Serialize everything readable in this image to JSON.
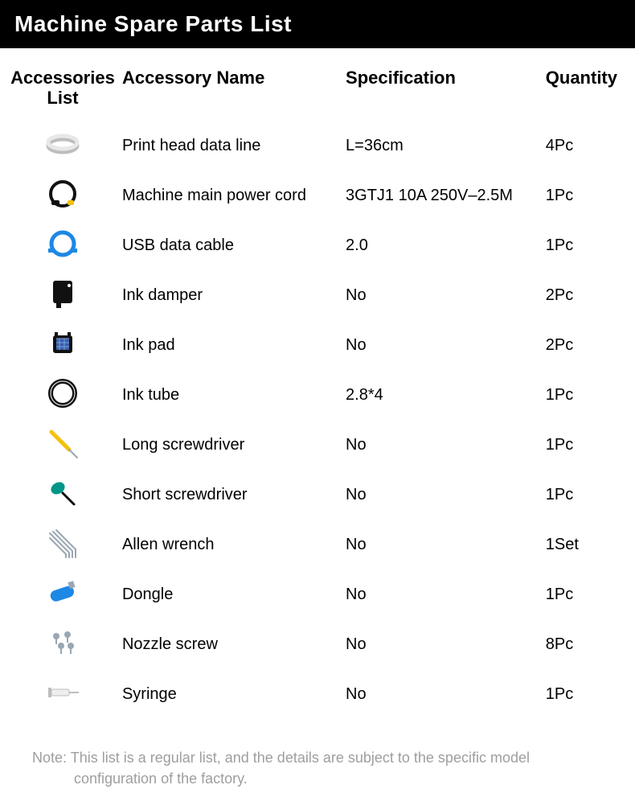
{
  "banner_title": "Machine Spare Parts List",
  "columns": {
    "icon_line1": "Accessories",
    "icon_line2": "List",
    "name": "Accessory Name",
    "spec": "Specification",
    "qty": "Quantity"
  },
  "rows": [
    {
      "icon": "flat-cable",
      "name": "Print head data line",
      "spec": "L=36cm",
      "qty": "4Pc"
    },
    {
      "icon": "power-cord",
      "name": "Machine main power cord",
      "spec": "3GTJ1 10A 250V–2.5M",
      "qty": "1Pc"
    },
    {
      "icon": "usb-cable",
      "name": "USB data cable",
      "spec": "2.0",
      "qty": "1Pc"
    },
    {
      "icon": "ink-damper",
      "name": "Ink damper",
      "spec": "No",
      "qty": "2Pc"
    },
    {
      "icon": "ink-pad",
      "name": "Ink pad",
      "spec": "No",
      "qty": "2Pc"
    },
    {
      "icon": "ink-tube",
      "name": "Ink tube",
      "spec": "2.8*4",
      "qty": "1Pc"
    },
    {
      "icon": "long-screwdriver",
      "name": "Long screwdriver",
      "spec": "No",
      "qty": "1Pc"
    },
    {
      "icon": "short-screwdriver",
      "name": "Short screwdriver",
      "spec": "No",
      "qty": "1Pc"
    },
    {
      "icon": "allen-wrench",
      "name": "Allen wrench",
      "spec": "No",
      "qty": "1Set"
    },
    {
      "icon": "dongle",
      "name": "Dongle",
      "spec": "No",
      "qty": "1Pc"
    },
    {
      "icon": "nozzle-screw",
      "name": "Nozzle screw",
      "spec": "No",
      "qty": "8Pc"
    },
    {
      "icon": "syringe",
      "name": "Syringe",
      "spec": "No",
      "qty": "1Pc"
    }
  ],
  "note_prefix": "Note: ",
  "note_line1": "This list is a regular list, and the details are subject to the specific model",
  "note_line2": "configuration of the factory.",
  "colors": {
    "banner_bg": "#000000",
    "banner_fg": "#ffffff",
    "text": "#000000",
    "note": "#9e9e9e",
    "blue": "#1e88e5",
    "dark": "#111111",
    "gray": "#bdbdbd",
    "teal": "#009688",
    "steel": "#9aa6b2",
    "yellow": "#f4c20d"
  }
}
